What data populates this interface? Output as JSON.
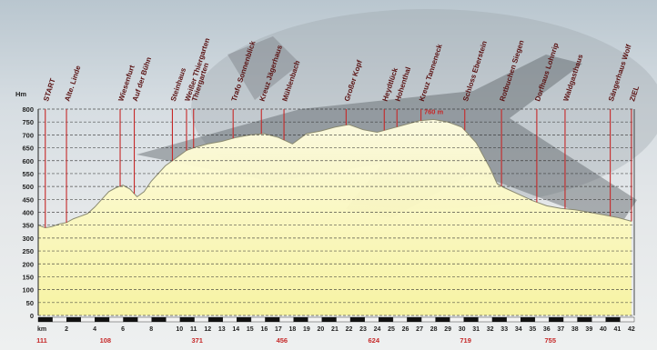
{
  "chart_data": {
    "type": "area",
    "ylabel": "Hm",
    "yticks": [
      0,
      50,
      100,
      150,
      200,
      250,
      300,
      350,
      400,
      450,
      500,
      550,
      600,
      650,
      700,
      750,
      800
    ],
    "ylim": [
      0,
      800
    ],
    "xlim": [
      0,
      42.2
    ],
    "xticks": [
      {
        "x": 0,
        "label": "km"
      },
      {
        "x": 2,
        "label": "2"
      },
      {
        "x": 4,
        "label": "4"
      },
      {
        "x": 6,
        "label": "6"
      },
      {
        "x": 8,
        "label": "8"
      },
      {
        "x": 10,
        "label": "10"
      },
      {
        "x": 11,
        "label": "11"
      },
      {
        "x": 12,
        "label": "12"
      },
      {
        "x": 13,
        "label": "13"
      },
      {
        "x": 14,
        "label": "14"
      },
      {
        "x": 15,
        "label": "15"
      },
      {
        "x": 16,
        "label": "16"
      },
      {
        "x": 17,
        "label": "17"
      },
      {
        "x": 18,
        "label": "18"
      },
      {
        "x": 19,
        "label": "19"
      },
      {
        "x": 20,
        "label": "20"
      },
      {
        "x": 21,
        "label": "21"
      },
      {
        "x": 22,
        "label": "22"
      },
      {
        "x": 23,
        "label": "23"
      },
      {
        "x": 24,
        "label": "24"
      },
      {
        "x": 25,
        "label": "25"
      },
      {
        "x": 26,
        "label": "26"
      },
      {
        "x": 27,
        "label": "27"
      },
      {
        "x": 28,
        "label": "28"
      },
      {
        "x": 29,
        "label": "29"
      },
      {
        "x": 30,
        "label": "30"
      },
      {
        "x": 31,
        "label": "31"
      },
      {
        "x": 32,
        "label": "32"
      },
      {
        "x": 33,
        "label": "33"
      },
      {
        "x": 34,
        "label": "34"
      },
      {
        "x": 35,
        "label": "35"
      },
      {
        "x": 36,
        "label": "36"
      },
      {
        "x": 37,
        "label": "37"
      },
      {
        "x": 38,
        "label": "38"
      },
      {
        "x": 39,
        "label": "39"
      },
      {
        "x": 40,
        "label": "40"
      },
      {
        "x": 41,
        "label": "41"
      },
      {
        "x": 42,
        "label": "42"
      }
    ],
    "profile": {
      "x": [
        0,
        0.5,
        1,
        1.5,
        2,
        2.5,
        3,
        3.5,
        4,
        4.5,
        5,
        5.5,
        6,
        6.5,
        7,
        7.5,
        8,
        9,
        10,
        10.5,
        11,
        12,
        13,
        14,
        15,
        16,
        17,
        18,
        19,
        20,
        21,
        22,
        23,
        24,
        25,
        26,
        27,
        28,
        29,
        30,
        31,
        32,
        32.5,
        33,
        34,
        35,
        36,
        37,
        38,
        39,
        40,
        41,
        42
      ],
      "y": [
        350,
        340,
        345,
        355,
        360,
        375,
        385,
        395,
        420,
        450,
        480,
        495,
        505,
        490,
        460,
        480,
        520,
        580,
        620,
        640,
        650,
        665,
        675,
        690,
        700,
        705,
        690,
        665,
        705,
        715,
        730,
        740,
        720,
        710,
        725,
        740,
        755,
        760,
        750,
        730,
        670,
        570,
        510,
        495,
        470,
        445,
        425,
        415,
        410,
        400,
        390,
        380,
        365
      ]
    },
    "markers": [
      {
        "x": 0.5,
        "label": "START"
      },
      {
        "x": 2,
        "label": "Alte. Linde"
      },
      {
        "x": 5.8,
        "label": "Wiesenfurt"
      },
      {
        "x": 6.8,
        "label": "Auf der Bühn"
      },
      {
        "x": 9.5,
        "label": "Steinhaus"
      },
      {
        "x": 10.5,
        "label": "Weißer Thiergarten"
      },
      {
        "x": 11,
        "label": "Thiergarten"
      },
      {
        "x": 13.8,
        "label": "Trafo Sonnenblick"
      },
      {
        "x": 15.8,
        "label": "Kreuz Jägerhaus"
      },
      {
        "x": 17.4,
        "label": "Mühlenbach"
      },
      {
        "x": 21.8,
        "label": "Großer Kopf"
      },
      {
        "x": 24.5,
        "label": "Heydtlück"
      },
      {
        "x": 25.4,
        "label": "Hohenthal"
      },
      {
        "x": 27.1,
        "label": "Kreuz Tanneneck"
      },
      {
        "x": 30.2,
        "label": "Schloss Eberstein"
      },
      {
        "x": 32.8,
        "label": "Rotbuchen Siegen"
      },
      {
        "x": 35.3,
        "label": "Dorfhaus Lohnrip"
      },
      {
        "x": 37.3,
        "label": "Waldgasthaus"
      },
      {
        "x": 40.5,
        "label": "Sängerhaus Wolf"
      },
      {
        "x": 42,
        "label": "ZIEL"
      }
    ],
    "bottom_values": [
      {
        "x": 0,
        "value": "111"
      },
      {
        "x": 4.5,
        "value": "108"
      },
      {
        "x": 11,
        "value": "371"
      },
      {
        "x": 17,
        "value": "456"
      },
      {
        "x": 23.5,
        "value": "624"
      },
      {
        "x": 30,
        "value": "719"
      },
      {
        "x": 36,
        "value": "755"
      }
    ],
    "peak_label": {
      "x": 28,
      "value": "760 m"
    },
    "grid": true,
    "colors": {
      "fill": "#f7f3a0",
      "fill_top": "#fffde0",
      "marker": "#c62828",
      "label": "#5a1212",
      "bottom_value": "#c62828"
    }
  }
}
